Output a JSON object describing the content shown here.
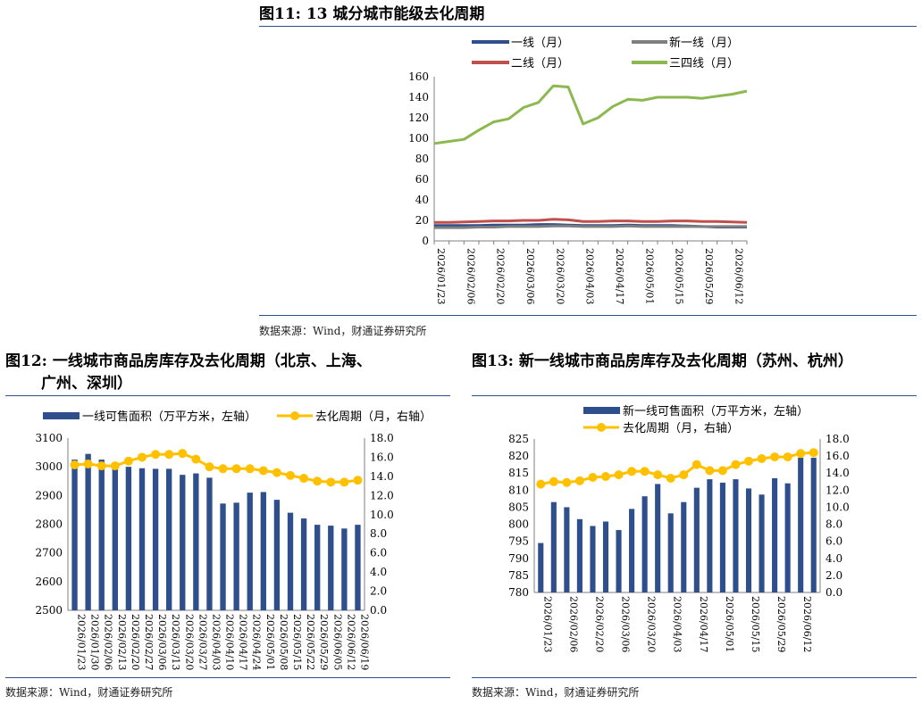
{
  "fig11": {
    "title": "图11: 13 城分城市能级去化周期",
    "source": "数据来源：Wind，财通证券研究所",
    "chart_data": {
      "type": "line",
      "x": [
        "2026/01/23",
        "2026/01/30",
        "2026/02/06",
        "2026/02/13",
        "2026/02/20",
        "2026/02/27",
        "2026/03/06",
        "2026/03/13",
        "2026/03/20",
        "2026/03/27",
        "2026/04/03",
        "2026/04/10",
        "2026/04/17",
        "2026/04/24",
        "2026/05/01",
        "2026/05/08",
        "2026/05/15",
        "2026/05/22",
        "2026/05/29",
        "2026/06/05",
        "2026/06/12",
        "2026/06/19"
      ],
      "xticks": [
        "2026/01/23",
        "2026/02/06",
        "2026/02/20",
        "2026/03/06",
        "2026/03/20",
        "2026/04/03",
        "2026/04/17",
        "2026/05/01",
        "2026/05/15",
        "2026/05/29",
        "2026/06/12"
      ],
      "ylim": [
        0,
        160
      ],
      "yticks": [
        "0",
        "20",
        "40",
        "60",
        "80",
        "100",
        "120",
        "140",
        "160"
      ],
      "series": [
        {
          "name": "一线（月）",
          "color": "#2e4f8c",
          "values": [
            15,
            15,
            15,
            15,
            15.5,
            15.5,
            15.5,
            16,
            16,
            15.5,
            15,
            15,
            15,
            15.5,
            15,
            15,
            15,
            14.5,
            14,
            13.5,
            13.5,
            13.5
          ]
        },
        {
          "name": "新一线（月）",
          "color": "#7f7f7f",
          "values": [
            13,
            13,
            13,
            13.5,
            13.5,
            14,
            14,
            14,
            14.5,
            14.5,
            14,
            14,
            14,
            14.5,
            14,
            14,
            14,
            14,
            14,
            14,
            14,
            14
          ]
        },
        {
          "name": "二线（月）",
          "color": "#c0504d",
          "values": [
            18,
            18,
            18.5,
            19,
            19.5,
            19.5,
            20,
            20,
            21,
            20.5,
            19,
            19,
            19.5,
            19.5,
            19,
            19,
            19.5,
            19.5,
            19,
            19,
            18.5,
            18
          ]
        },
        {
          "name": "三四线（月）",
          "color": "#8cb84f",
          "values": [
            95,
            97,
            99,
            108,
            116,
            119,
            130,
            135,
            151,
            150,
            114,
            120,
            131,
            138,
            137,
            140,
            140,
            140,
            139,
            141,
            143,
            146
          ]
        }
      ]
    }
  },
  "fig12": {
    "title_line1": "图12: 一线城市商品房库存及去化周期（北京、上海、",
    "title_line2": "广州、深圳）",
    "source": "数据来源：Wind，财通证券研究所",
    "chart_data": {
      "type": "bar",
      "x": [
        "2026/01/23",
        "2026/01/30",
        "2026/02/06",
        "2026/02/13",
        "2026/02/20",
        "2026/02/27",
        "2026/03/06",
        "2026/03/13",
        "2026/03/20",
        "2026/03/27",
        "2026/04/03",
        "2026/04/10",
        "2026/04/17",
        "2026/04/24",
        "2026/05/01",
        "2026/05/08",
        "2026/05/15",
        "2026/05/22",
        "2026/05/29",
        "2026/06/05",
        "2026/06/12",
        "2026/06/19"
      ],
      "ylim_left": [
        2500,
        3100
      ],
      "yticks_left": [
        "2500",
        "2600",
        "2700",
        "2800",
        "2900",
        "3000",
        "3100"
      ],
      "ylim_right": [
        0,
        18
      ],
      "yticks_right": [
        "0.0",
        "2.0",
        "4.0",
        "6.0",
        "8.0",
        "10.0",
        "12.0",
        "14.0",
        "16.0",
        "18.0"
      ],
      "series": [
        {
          "name": "一线可售面积（万平方米，左轴）",
          "kind": "bar",
          "color": "#2e4f8c",
          "values": [
            3025,
            3045,
            3025,
            3015,
            3000,
            2995,
            2993,
            2993,
            2972,
            2977,
            2962,
            2872,
            2875,
            2910,
            2912,
            2885,
            2840,
            2820,
            2798,
            2795,
            2785,
            2798
          ]
        },
        {
          "name": "去化周期（月，右轴）",
          "kind": "line",
          "color": "#ffc000",
          "values": [
            15.2,
            15.3,
            15.1,
            15.1,
            15.6,
            16.0,
            16.3,
            16.3,
            16.4,
            15.8,
            15.0,
            14.8,
            14.8,
            14.8,
            14.6,
            14.4,
            14.1,
            13.8,
            13.5,
            13.4,
            13.4,
            13.6
          ]
        }
      ]
    }
  },
  "fig13": {
    "title": "图13: 新一线城市商品房库存及去化周期（苏州、杭州）",
    "source": "数据来源：Wind，财通证券研究所",
    "chart_data": {
      "type": "bar",
      "x": [
        "2026/01/23",
        "2026/01/30",
        "2026/02/06",
        "2026/02/13",
        "2026/02/20",
        "2026/02/27",
        "2026/03/06",
        "2026/03/13",
        "2026/03/20",
        "2026/03/27",
        "2026/04/03",
        "2026/04/10",
        "2026/04/17",
        "2026/04/24",
        "2026/05/01",
        "2026/05/08",
        "2026/05/15",
        "2026/05/22",
        "2026/05/29",
        "2026/06/05",
        "2026/06/12",
        "2026/06/19"
      ],
      "xticks": [
        "2026/01/23",
        "2026/02/06",
        "2026/02/20",
        "2026/03/06",
        "2026/03/20",
        "2026/04/03",
        "2026/04/17",
        "2026/05/01",
        "2026/05/15",
        "2026/05/29",
        "2026/06/12"
      ],
      "ylim_left": [
        780,
        825
      ],
      "yticks_left": [
        "780",
        "785",
        "790",
        "795",
        "800",
        "805",
        "810",
        "815",
        "820",
        "825"
      ],
      "ylim_right": [
        0,
        18
      ],
      "yticks_right": [
        "0.0",
        "2.0",
        "4.0",
        "6.0",
        "8.0",
        "10.0",
        "12.0",
        "14.0",
        "16.0",
        "18.0"
      ],
      "series": [
        {
          "name": "新一线可售面积（万平方米，左轴）",
          "kind": "bar",
          "color": "#2e4f8c",
          "values": [
            794.5,
            806.5,
            805,
            801.5,
            799.5,
            800.8,
            798.3,
            804.5,
            808.2,
            811.8,
            803.2,
            806.5,
            810.7,
            813.2,
            812.2,
            813.2,
            810.5,
            808.7,
            813.5,
            812,
            819.5,
            819.5
          ]
        },
        {
          "name": "去化周期（月，右轴）",
          "kind": "line",
          "color": "#ffc000",
          "values": [
            12.7,
            13,
            12.9,
            13.1,
            13.5,
            13.6,
            13.8,
            14.2,
            14.2,
            13.8,
            13.4,
            13.8,
            15,
            14.3,
            14.3,
            15,
            15.4,
            15.7,
            15.9,
            15.9,
            16.3,
            16.4
          ]
        }
      ]
    }
  }
}
